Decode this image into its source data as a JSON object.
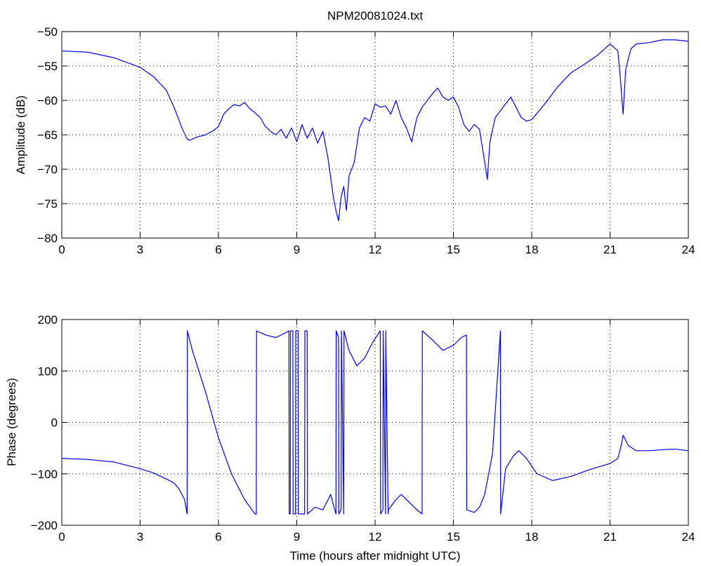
{
  "chart_data": [
    {
      "type": "line",
      "title": "NPM20081024.txt",
      "xlabel": "",
      "ylabel": "Amplitude (dB)",
      "xlim": [
        0,
        24
      ],
      "ylim": [
        -80,
        -50
      ],
      "xticks": [
        0,
        3,
        6,
        9,
        12,
        15,
        18,
        21,
        24
      ],
      "yticks": [
        -80,
        -75,
        -70,
        -65,
        -60,
        -55,
        -50
      ],
      "grid": true,
      "color": "#0000ff",
      "series": [
        {
          "x": [
            0,
            1,
            2,
            3,
            3.5,
            4,
            4.3,
            4.6,
            4.8,
            4.9,
            5.0,
            5.2,
            5.5,
            5.8,
            6.0,
            6.2,
            6.4,
            6.6,
            6.8,
            7.0,
            7.2,
            7.4,
            7.6,
            7.8,
            8.0,
            8.2,
            8.4,
            8.6,
            8.8,
            9.0,
            9.2,
            9.4,
            9.6,
            9.8,
            10.0,
            10.2,
            10.4,
            10.5,
            10.6,
            10.7,
            10.8,
            10.9,
            11.0,
            11.2,
            11.4,
            11.6,
            11.8,
            12.0,
            12.2,
            12.4,
            12.6,
            12.8,
            13.0,
            13.2,
            13.4,
            13.6,
            13.8,
            14.0,
            14.2,
            14.4,
            14.6,
            14.8,
            15.0,
            15.2,
            15.4,
            15.6,
            15.8,
            16.0,
            16.2,
            16.3,
            16.4,
            16.6,
            16.8,
            17.0,
            17.2,
            17.4,
            17.6,
            17.8,
            18.0,
            18.5,
            19.0,
            19.5,
            20.0,
            20.5,
            21.0,
            21.3,
            21.4,
            21.5,
            21.6,
            21.8,
            22.0,
            22.5,
            23.0,
            23.5,
            24.0
          ],
          "y": [
            -52.8,
            -53.0,
            -53.8,
            -55.2,
            -56.5,
            -58.5,
            -61.0,
            -64.0,
            -65.6,
            -65.8,
            -65.6,
            -65.3,
            -65.0,
            -64.4,
            -63.8,
            -62.0,
            -61.2,
            -60.6,
            -60.8,
            -60.3,
            -61.2,
            -61.8,
            -62.5,
            -63.8,
            -64.5,
            -65.0,
            -64.2,
            -65.5,
            -64.0,
            -66.0,
            -63.5,
            -65.5,
            -64.0,
            -66.2,
            -64.5,
            -68.5,
            -74.0,
            -76.0,
            -77.5,
            -74.0,
            -72.5,
            -76.0,
            -71.0,
            -69.0,
            -64.0,
            -62.5,
            -63.0,
            -60.5,
            -61.0,
            -60.8,
            -62.0,
            -60.0,
            -62.5,
            -64.0,
            -66.0,
            -62.5,
            -61.0,
            -60.0,
            -59.0,
            -58.2,
            -59.5,
            -60.0,
            -59.5,
            -61.0,
            -63.5,
            -64.5,
            -63.5,
            -64.2,
            -69.0,
            -71.5,
            -66.0,
            -62.5,
            -61.5,
            -60.5,
            -59.5,
            -61.0,
            -62.5,
            -63.0,
            -62.8,
            -60.5,
            -58.0,
            -56.0,
            -54.8,
            -53.5,
            -51.8,
            -52.8,
            -57.0,
            -62.0,
            -55.5,
            -52.5,
            -51.8,
            -51.6,
            -51.2,
            -51.2,
            -51.4
          ]
        }
      ]
    },
    {
      "type": "line",
      "title": "",
      "xlabel": "Time (hours after midnight UTC)",
      "ylabel": "Phase (degrees)",
      "xlim": [
        0,
        24
      ],
      "ylim": [
        -200,
        200
      ],
      "xticks": [
        0,
        3,
        6,
        9,
        12,
        15,
        18,
        21,
        24
      ],
      "yticks": [
        -200,
        -100,
        0,
        100,
        200
      ],
      "grid": true,
      "color": "#0000ff",
      "series": [
        {
          "x": [
            0,
            1,
            2,
            3,
            3.5,
            4,
            4.3,
            4.5,
            4.7,
            4.8,
            4.81,
            5.0,
            5.5,
            6.0,
            6.5,
            7.0,
            7.4,
            7.45,
            7.46,
            7.8,
            8.2,
            8.6,
            8.7,
            8.71,
            8.75,
            8.76,
            8.85,
            8.86,
            8.95,
            8.96,
            9.05,
            9.06,
            9.3,
            9.31,
            9.4,
            9.41,
            9.7,
            10.0,
            10.2,
            10.3,
            10.4,
            10.5,
            10.51,
            10.6,
            10.61,
            10.7,
            10.71,
            10.8,
            10.81,
            11.0,
            11.3,
            11.6,
            11.9,
            12.2,
            12.21,
            12.3,
            12.31,
            12.4,
            12.41,
            12.5,
            12.51,
            12.8,
            13.0,
            13.3,
            13.6,
            13.8,
            13.81,
            14.2,
            14.6,
            15.0,
            15.3,
            15.5,
            15.51,
            15.8,
            16.0,
            16.2,
            16.5,
            16.8,
            16.81,
            17.0,
            17.3,
            17.5,
            17.8,
            18.2,
            18.8,
            19.5,
            20.2,
            21.0,
            21.3,
            21.45,
            21.5,
            21.7,
            22.0,
            22.5,
            23.0,
            23.5,
            24.0
          ],
          "y": [
            -70,
            -72,
            -77,
            -90,
            -98,
            -110,
            -118,
            -130,
            -150,
            -178,
            178,
            140,
            60,
            -30,
            -100,
            -150,
            -178,
            -178,
            178,
            170,
            165,
            175,
            178,
            -178,
            -178,
            178,
            178,
            -178,
            -178,
            178,
            178,
            -178,
            -178,
            178,
            178,
            -178,
            -165,
            -170,
            -150,
            -140,
            -160,
            -178,
            178,
            165,
            -178,
            -170,
            178,
            -178,
            178,
            140,
            110,
            125,
            155,
            178,
            -178,
            -170,
            178,
            -178,
            178,
            -178,
            -170,
            -150,
            -140,
            -155,
            -170,
            -178,
            178,
            160,
            140,
            150,
            165,
            170,
            -170,
            -175,
            -165,
            -140,
            -60,
            178,
            -178,
            -90,
            -65,
            -55,
            -70,
            -100,
            -113,
            -105,
            -92,
            -80,
            -70,
            -40,
            -25,
            -45,
            -55,
            -55,
            -53,
            -52,
            -55
          ]
        }
      ]
    }
  ]
}
